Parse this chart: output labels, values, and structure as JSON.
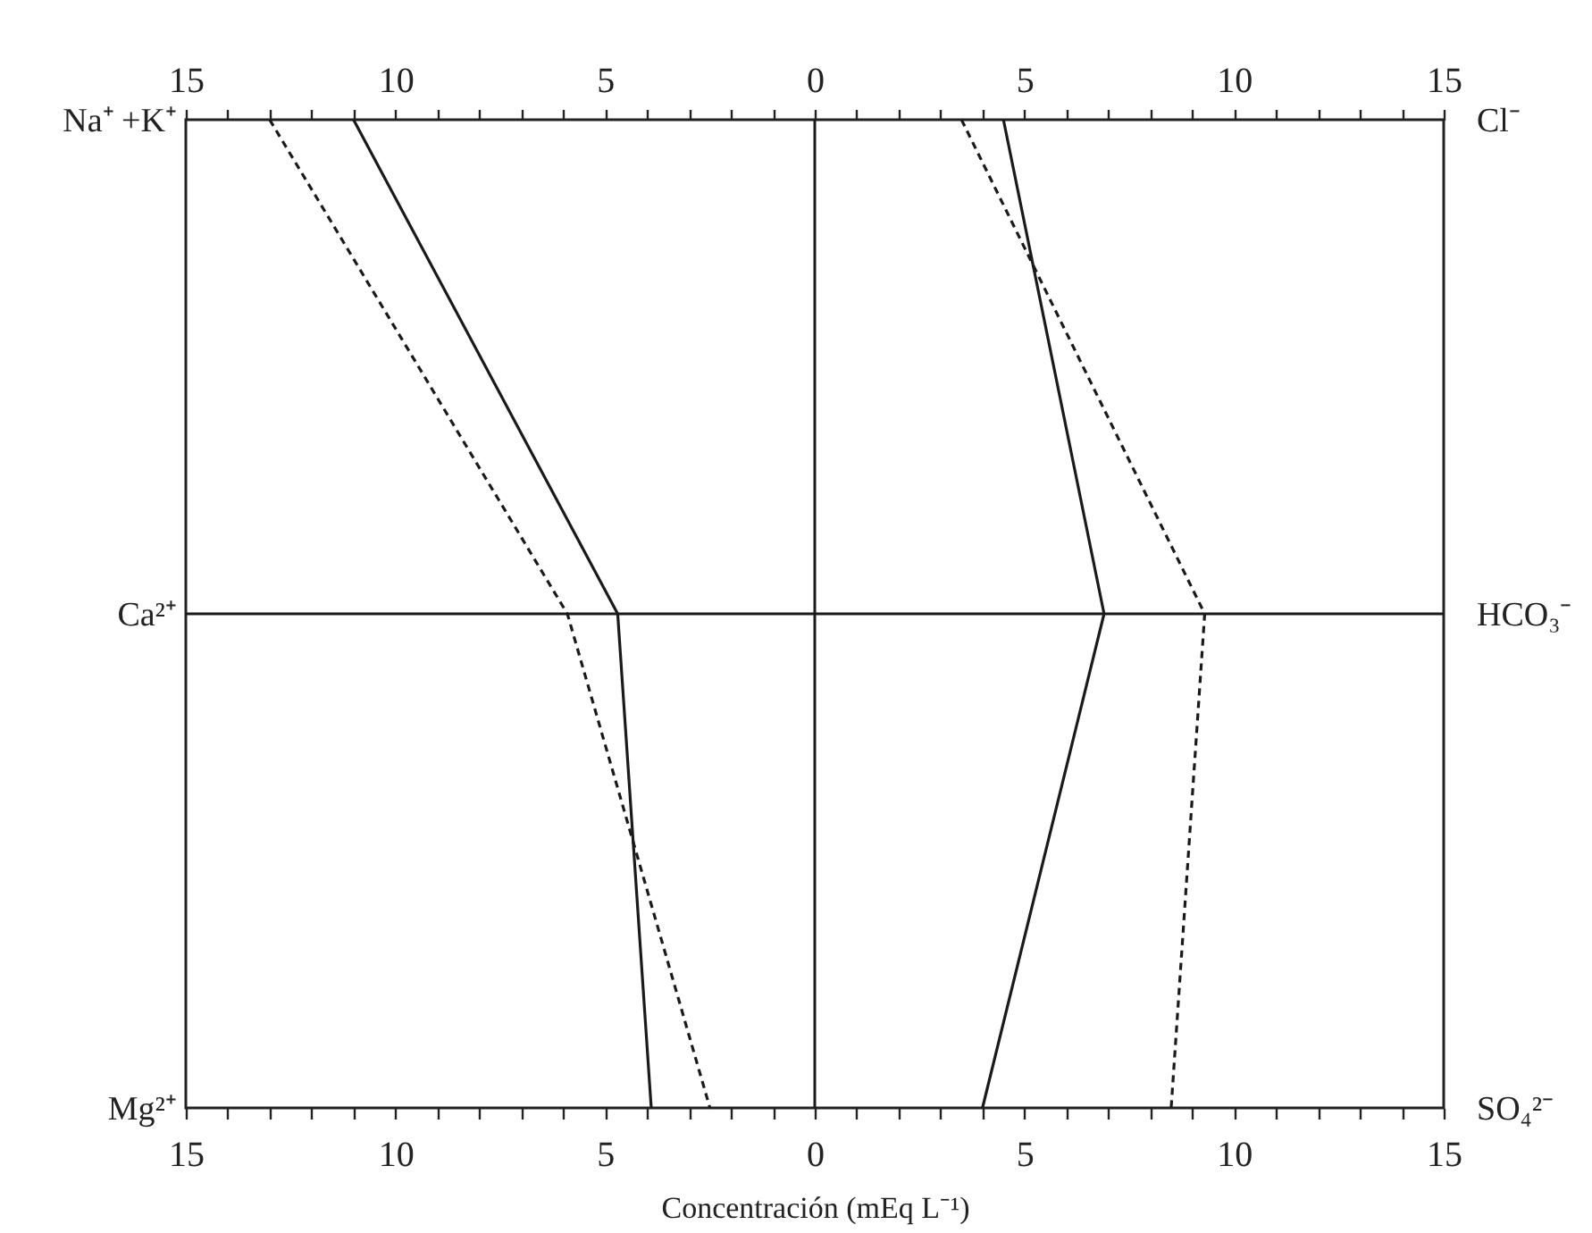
{
  "chart_data": {
    "type": "line",
    "orientation": "horizontal",
    "xlabel": "Concentración (mEq L⁻¹)",
    "categories": [
      "Na⁺ +K⁺",
      "Ca²⁺",
      "Mg²⁺"
    ],
    "y2_categories": [
      "Cl⁻",
      "HCO₃⁻",
      "SO₄²⁻"
    ],
    "xlim": [
      -15,
      15
    ],
    "xticks": [
      {
        "value": -15,
        "label": "15"
      },
      {
        "value": -14,
        "label": null
      },
      {
        "value": -13,
        "label": null
      },
      {
        "value": -12,
        "label": null
      },
      {
        "value": -11,
        "label": null
      },
      {
        "value": -10,
        "label": "10"
      },
      {
        "value": -9,
        "label": null
      },
      {
        "value": -8,
        "label": null
      },
      {
        "value": -7,
        "label": null
      },
      {
        "value": -6,
        "label": null
      },
      {
        "value": -5,
        "label": "5"
      },
      {
        "value": -4,
        "label": null
      },
      {
        "value": -3,
        "label": null
      },
      {
        "value": -2,
        "label": null
      },
      {
        "value": -1,
        "label": null
      },
      0,
      {
        "value": 1,
        "label": null
      },
      {
        "value": 2,
        "label": null
      },
      {
        "value": 3,
        "label": null
      },
      {
        "value": 4,
        "label": null
      },
      5,
      {
        "value": 6,
        "label": null
      },
      {
        "value": 7,
        "label": null
      },
      {
        "value": 8,
        "label": null
      },
      {
        "value": 9,
        "label": null
      },
      10,
      {
        "value": 11,
        "label": null
      },
      {
        "value": 12,
        "label": null
      },
      {
        "value": 13,
        "label": null
      },
      {
        "value": 14,
        "label": null
      },
      15
    ],
    "x2lim": [
      -15,
      15
    ],
    "x2ticks": [
      {
        "value": -15,
        "label": "15"
      },
      {
        "value": -14,
        "label": null
      },
      {
        "value": -13,
        "label": null
      },
      {
        "value": -12,
        "label": null
      },
      {
        "value": -11,
        "label": null
      },
      {
        "value": -10,
        "label": "10"
      },
      {
        "value": -9,
        "label": null
      },
      {
        "value": -8,
        "label": null
      },
      {
        "value": -7,
        "label": null
      },
      {
        "value": -6,
        "label": null
      },
      {
        "value": -5,
        "label": "5"
      },
      {
        "value": -4,
        "label": null
      },
      {
        "value": -3,
        "label": null
      },
      {
        "value": -2,
        "label": null
      },
      {
        "value": -1,
        "label": null
      },
      0,
      {
        "value": 1,
        "label": null
      },
      {
        "value": 2,
        "label": null
      },
      {
        "value": 3,
        "label": null
      },
      {
        "value": 4,
        "label": null
      },
      5,
      {
        "value": 6,
        "label": null
      },
      {
        "value": 7,
        "label": null
      },
      {
        "value": 8,
        "label": null
      },
      {
        "value": 9,
        "label": null
      },
      10,
      {
        "value": 11,
        "label": null
      },
      {
        "value": 12,
        "label": null
      },
      {
        "value": 13,
        "label": null
      },
      {
        "value": 14,
        "label": null
      },
      15
    ],
    "series": [
      {
        "color": "#1a1a1a",
        "line_style": "solid",
        "values": [
          -11.0,
          -4.7,
          -3.9
        ]
      },
      {
        "color": "#1a1a1a",
        "line_style": "dashed",
        "values": [
          -13.0,
          -5.9,
          -2.5
        ]
      },
      {
        "color": "#1a1a1a",
        "line_style": "solid",
        "axis": "y2",
        "values": [
          4.5,
          6.9,
          4.0
        ]
      },
      {
        "color": "#1a1a1a",
        "line_style": "dashed",
        "axis": "y2",
        "values": [
          3.5,
          9.3,
          8.5
        ]
      }
    ],
    "ref_lines": [
      {
        "axis": "x",
        "value": 0,
        "color": "#1a1a1a"
      },
      {
        "axis": "y",
        "value": "Ca²⁺",
        "color": "#1a1a1a"
      }
    ]
  }
}
